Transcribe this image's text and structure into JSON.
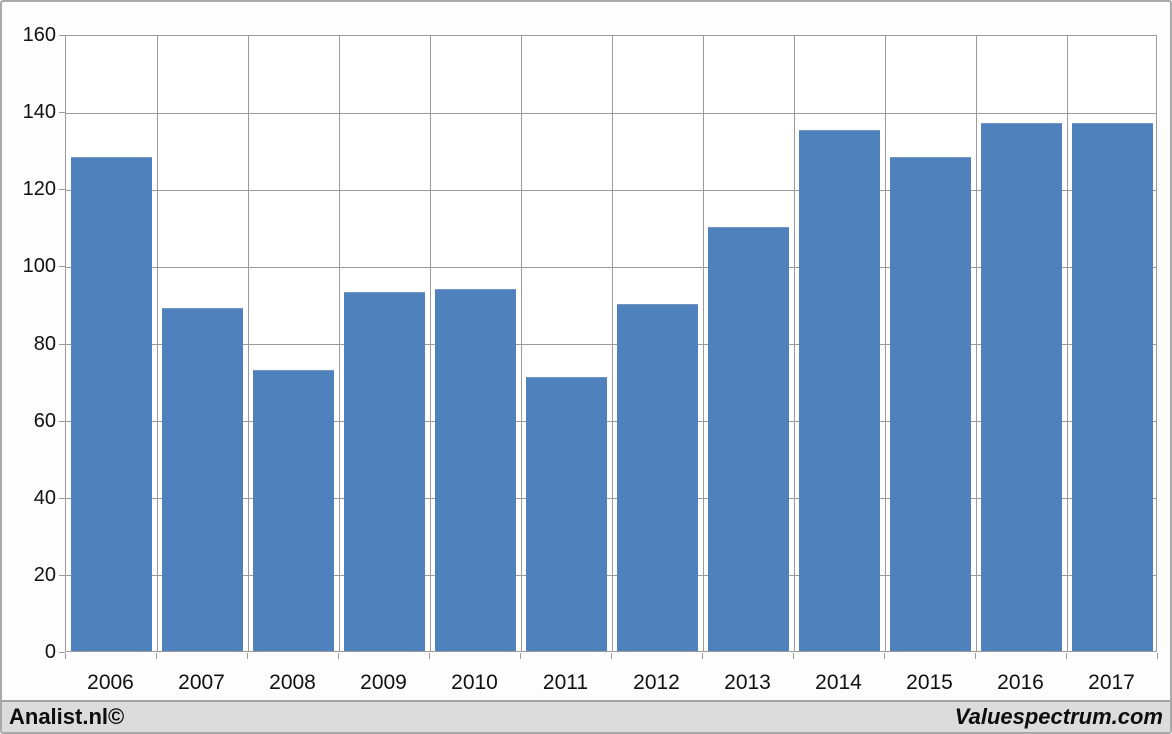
{
  "chart_data": {
    "type": "bar",
    "categories": [
      "2006",
      "2007",
      "2008",
      "2009",
      "2010",
      "2011",
      "2012",
      "2013",
      "2014",
      "2015",
      "2016",
      "2017"
    ],
    "values": [
      128,
      89,
      73,
      93,
      94,
      71,
      90,
      110,
      135,
      128,
      137,
      137
    ],
    "title": "",
    "xlabel": "",
    "ylabel": "",
    "ylim": [
      0,
      160
    ],
    "ytick_step": 20,
    "ytick_labels": [
      "0",
      "20",
      "40",
      "60",
      "80",
      "100",
      "120",
      "140",
      "160"
    ],
    "grid": true,
    "legend": null,
    "bar_color": "#4f81bd",
    "gridline_color": "#9b9b9b",
    "plot_background": "#ffffff"
  },
  "footer": {
    "left": "Analist.nl©",
    "right": "Valuespectrum.com"
  },
  "colors": {
    "accent": "#4f81bd",
    "frame_border": "#a9a9a9",
    "footer_background": "#dcdcdc",
    "text": "#111111"
  }
}
